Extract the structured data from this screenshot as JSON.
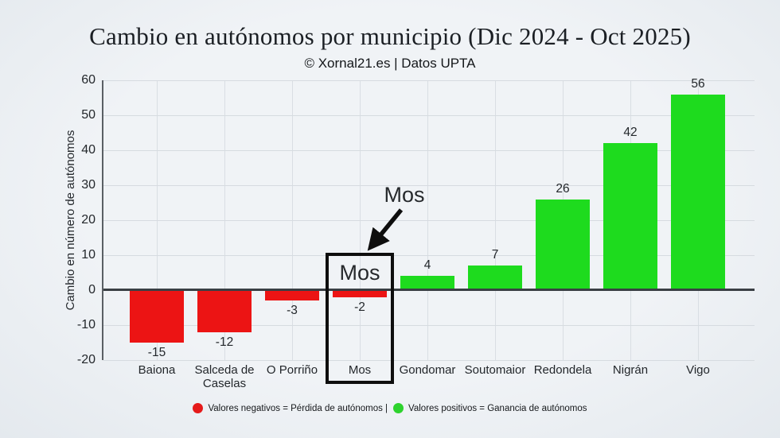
{
  "chart_data": {
    "type": "bar",
    "title": "Cambio en autónomos por municipio (Dic 2024 - Oct 2025)",
    "subtitle": "© Xornal21.es | Datos UPTA",
    "categories": [
      "Baiona",
      "Salceda de Caselas",
      "O Porriño",
      "Mos",
      "Gondomar",
      "Soutomaior",
      "Redondela",
      "Nigrán",
      "Vigo"
    ],
    "values": [
      -15,
      -12,
      -3,
      -2,
      4,
      7,
      26,
      42,
      56
    ],
    "xlabel": "",
    "ylabel": "Cambio en número de autónomos",
    "ylim": [
      -20,
      60
    ],
    "yticks": [
      -20,
      -10,
      0,
      10,
      20,
      30,
      40,
      50,
      60
    ],
    "grid": true,
    "legend_position": "bottom",
    "negative_color": "#ec1414",
    "positive_color": "#1edb1e",
    "annotation": {
      "callout_label": "Mos",
      "box_label": "Mos",
      "highlight_category": "Mos",
      "highlight_index": 3
    },
    "legend": {
      "items": [
        {
          "label": "Valores negativos = Pérdida de autónomos |",
          "color": "#e51a1a"
        },
        {
          "label": "Valores positivos = Ganancia de autónomos",
          "color": "#2ed32e"
        }
      ]
    }
  }
}
